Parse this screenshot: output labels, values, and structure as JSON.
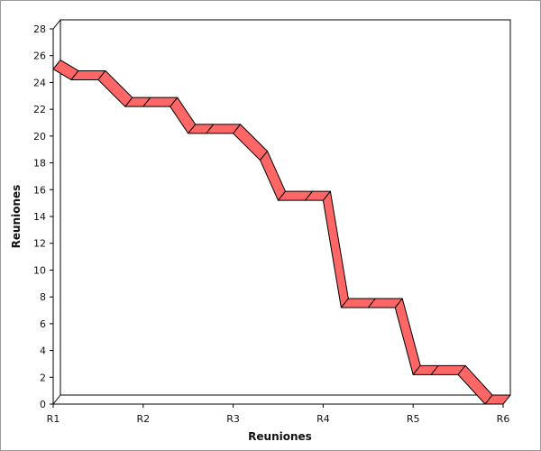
{
  "chart_data": {
    "type": "line",
    "style": "3d-ribbon",
    "title": "",
    "xlabel": "Reuniones",
    "ylabel": "Reuniones",
    "x_ticks": [
      "R1",
      "R2",
      "R3",
      "R4",
      "R5",
      "R6"
    ],
    "ylim": [
      0,
      28
    ],
    "y_ticks": [
      0,
      2,
      4,
      6,
      8,
      10,
      12,
      14,
      16,
      18,
      20,
      22,
      24,
      26,
      28
    ],
    "grid": false,
    "legend": "none",
    "series": [
      {
        "x": [
          1.0,
          1.2,
          1.5,
          1.8,
          2.0,
          2.3,
          2.5,
          2.7,
          3.0,
          3.3,
          3.5,
          3.8,
          4.0,
          4.2,
          4.5,
          4.8,
          5.0,
          5.2,
          5.5,
          5.8,
          6.0
        ],
        "values": [
          25.0,
          24.2,
          24.2,
          22.2,
          22.2,
          22.2,
          20.2,
          20.2,
          20.2,
          18.2,
          15.2,
          15.2,
          15.2,
          7.2,
          7.2,
          7.2,
          2.2,
          2.2,
          2.2,
          0.0,
          0.0
        ]
      }
    ],
    "colors": {
      "ribbon": "#ff6666",
      "edge": "#000000",
      "frame": "#000000"
    }
  }
}
